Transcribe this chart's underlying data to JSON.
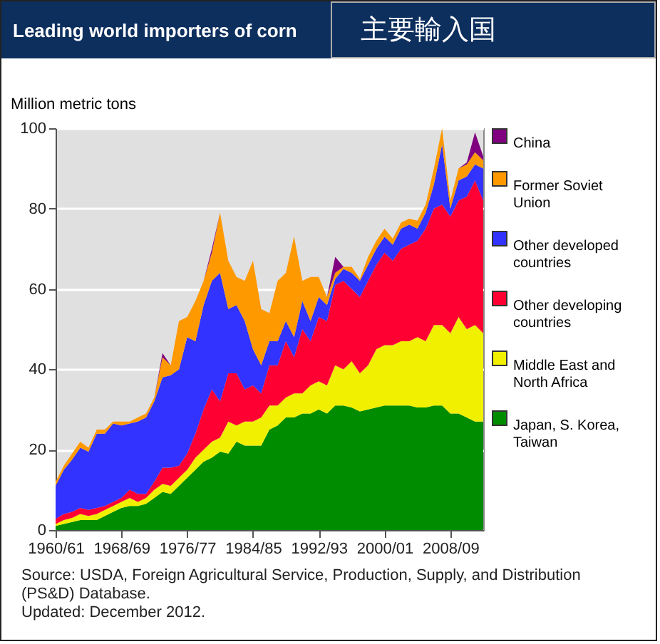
{
  "chart_data": {
    "type": "area",
    "title": "Leading world importers of corn",
    "subtitle": "主要輸入国",
    "ylabel": "Million metric tons",
    "categories": [
      "1960/61",
      null,
      null,
      null,
      null,
      null,
      null,
      null,
      "1968/69",
      null,
      null,
      null,
      null,
      null,
      null,
      null,
      "1976/77",
      null,
      null,
      null,
      null,
      null,
      null,
      null,
      "1984/85",
      null,
      null,
      null,
      null,
      null,
      null,
      null,
      "1992/93",
      null,
      null,
      null,
      null,
      null,
      null,
      null,
      "2000/01",
      null,
      null,
      null,
      null,
      null,
      null,
      null,
      "2008/09",
      null,
      null,
      null,
      null
    ],
    "stacked": true,
    "ylim": [
      0,
      100
    ],
    "yticks": [
      0,
      20,
      40,
      60,
      80,
      100
    ],
    "grid": "y",
    "legend": "right",
    "series": [
      {
        "name": "Japan, S. Korea, Taiwan",
        "color": "#008c00",
        "values": [
          1,
          1.5,
          2,
          2.5,
          2.5,
          2.5,
          3.5,
          4.5,
          5.5,
          6,
          6,
          6.5,
          8,
          9.5,
          9,
          11,
          13,
          15,
          17,
          18,
          19.5,
          19,
          22,
          21,
          21,
          21,
          25,
          26,
          28,
          28,
          29,
          29,
          30,
          29,
          31,
          31,
          30.5,
          29.5,
          30,
          30.5,
          31,
          31,
          31,
          31,
          30.5,
          30.5,
          31,
          31,
          29,
          29,
          28,
          27,
          27
        ]
      },
      {
        "name": "Middle East and North Africa",
        "color": "#f0f000",
        "values": [
          0.5,
          1,
          1,
          1.5,
          1,
          1.5,
          1.5,
          1.5,
          1.5,
          2,
          1,
          1.5,
          2,
          2,
          2,
          2,
          2,
          3,
          3,
          4,
          3.5,
          8,
          4,
          6,
          6,
          7,
          6,
          5,
          5,
          6,
          5,
          7,
          7,
          7,
          10,
          9,
          11.5,
          9.5,
          11,
          14.5,
          15,
          15,
          16,
          16,
          17.5,
          16.5,
          20,
          20,
          20,
          24,
          22,
          24,
          22
        ]
      },
      {
        "name": "Other developing countries",
        "color": "#ff0033",
        "values": [
          1.3,
          1.5,
          1.5,
          1.5,
          1.5,
          1.5,
          1,
          1,
          1,
          2,
          2,
          1,
          2,
          4,
          4.5,
          3,
          4,
          6,
          10,
          13,
          9,
          12,
          13,
          8,
          9,
          6,
          10,
          10,
          14,
          9,
          16,
          11,
          16,
          16,
          20,
          22,
          18,
          19,
          21,
          21,
          23,
          21,
          23,
          24,
          24,
          28,
          29,
          30,
          29,
          29,
          33,
          36,
          33
        ]
      },
      {
        "name": "Other developed countries",
        "color": "#3333ff",
        "values": [
          8.2,
          11,
          13,
          15,
          14.5,
          18.5,
          18,
          19.5,
          18,
          16.5,
          18,
          19,
          20,
          22.5,
          23,
          24,
          29,
          23,
          26,
          27,
          32,
          16,
          17,
          17,
          9,
          7,
          6,
          6,
          5,
          5,
          7,
          5,
          5,
          4,
          1.5,
          3,
          4,
          4,
          4,
          4,
          4,
          4,
          5,
          5,
          3,
          4,
          6,
          15,
          2,
          5,
          5,
          4,
          8
        ]
      },
      {
        "name": "Former Soviet Union",
        "color": "#ff9900",
        "values": [
          1,
          1,
          1.5,
          1.5,
          1,
          1,
          1,
          0.5,
          1,
          0.5,
          1,
          1,
          1,
          5,
          2.5,
          12,
          5,
          10,
          6,
          7,
          15,
          12,
          7,
          10,
          22,
          14,
          7,
          15,
          12,
          25,
          5,
          11,
          5,
          2,
          1.5,
          0.5,
          1.5,
          0.5,
          2,
          2,
          2,
          1.5,
          1.5,
          1.5,
          2,
          2,
          4,
          4,
          2,
          3,
          3,
          3,
          2
        ]
      },
      {
        "name": "China",
        "color": "#800080",
        "values": [
          0,
          0,
          0,
          0,
          0,
          0,
          0,
          0,
          0,
          0,
          0,
          0,
          0,
          1,
          0,
          0,
          0,
          0,
          0,
          1,
          0,
          0,
          0,
          0,
          0,
          0,
          0,
          0,
          0,
          0,
          0,
          0,
          0,
          0,
          4,
          0,
          0,
          0,
          0,
          0,
          0,
          0,
          0,
          0,
          0,
          0,
          0,
          0,
          0,
          0,
          0.5,
          5,
          1
        ]
      }
    ],
    "annotations": [
      "Source: USDA, Foreign Agricultural Service, Production, Supply, and Distribution (PS&D) Database.",
      "Updated: December 2012."
    ]
  }
}
